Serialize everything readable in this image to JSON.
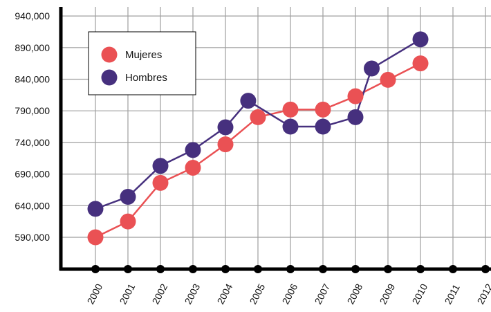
{
  "chart_data": {
    "type": "line",
    "title": "",
    "xlabel": "",
    "ylabel": "",
    "categories": [
      "2000",
      "2001",
      "2002",
      "2003",
      "2004",
      "2005",
      "2006",
      "2007",
      "2008",
      "2009",
      "2010",
      "2011",
      "2012"
    ],
    "yticks": [
      "590,000",
      "640,000",
      "690,000",
      "740,000",
      "790,000",
      "840,000",
      "890,000",
      "940,000"
    ],
    "ytick_values": [
      590000,
      640000,
      690000,
      740000,
      790000,
      840000,
      890000,
      940000
    ],
    "ylim": [
      535000,
      960000
    ],
    "grid": true,
    "legend_position": "top-left",
    "series": [
      {
        "name": "Mujeres",
        "color": "#ea5154",
        "points": [
          {
            "x": 2000,
            "y": 590000
          },
          {
            "x": 2001,
            "y": 615000
          },
          {
            "x": 2002,
            "y": 676000
          },
          {
            "x": 2003,
            "y": 700000
          },
          {
            "x": 2004,
            "y": 737000
          },
          {
            "x": 2005,
            "y": 780000
          },
          {
            "x": 2006,
            "y": 792000
          },
          {
            "x": 2007,
            "y": 792000
          },
          {
            "x": 2008,
            "y": 813000
          },
          {
            "x": 2009,
            "y": 839000
          },
          {
            "x": 2010,
            "y": 865000
          }
        ]
      },
      {
        "name": "Hombres",
        "color": "#46307e",
        "points": [
          {
            "x": 2000,
            "y": 635000
          },
          {
            "x": 2001,
            "y": 654000
          },
          {
            "x": 2002,
            "y": 703000
          },
          {
            "x": 2003,
            "y": 728000
          },
          {
            "x": 2004,
            "y": 764000
          },
          {
            "x": 2004.7,
            "y": 806000
          },
          {
            "x": 2006,
            "y": 765000
          },
          {
            "x": 2007,
            "y": 765000
          },
          {
            "x": 2008,
            "y": 780000
          },
          {
            "x": 2008.5,
            "y": 857000
          },
          {
            "x": 2010,
            "y": 903000
          }
        ]
      }
    ]
  }
}
